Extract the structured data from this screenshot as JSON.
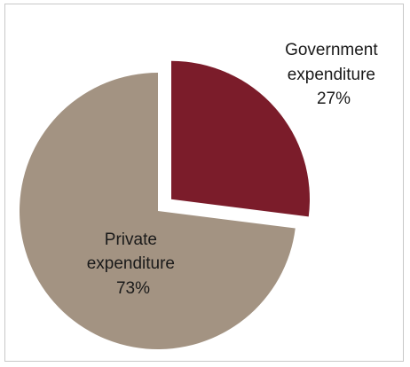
{
  "chart_data": {
    "type": "pie",
    "slices": [
      {
        "label_lines": [
          "Government",
          "expenditure",
          "27%"
        ],
        "value": 27,
        "color": "#7b1c2a",
        "exploded": true
      },
      {
        "label_lines": [
          "Private",
          "expenditure",
          "73%"
        ],
        "value": 73,
        "color": "#a39382",
        "exploded": false
      }
    ],
    "start_angle_deg": 0,
    "direction": "clockwise",
    "legend": "none"
  }
}
